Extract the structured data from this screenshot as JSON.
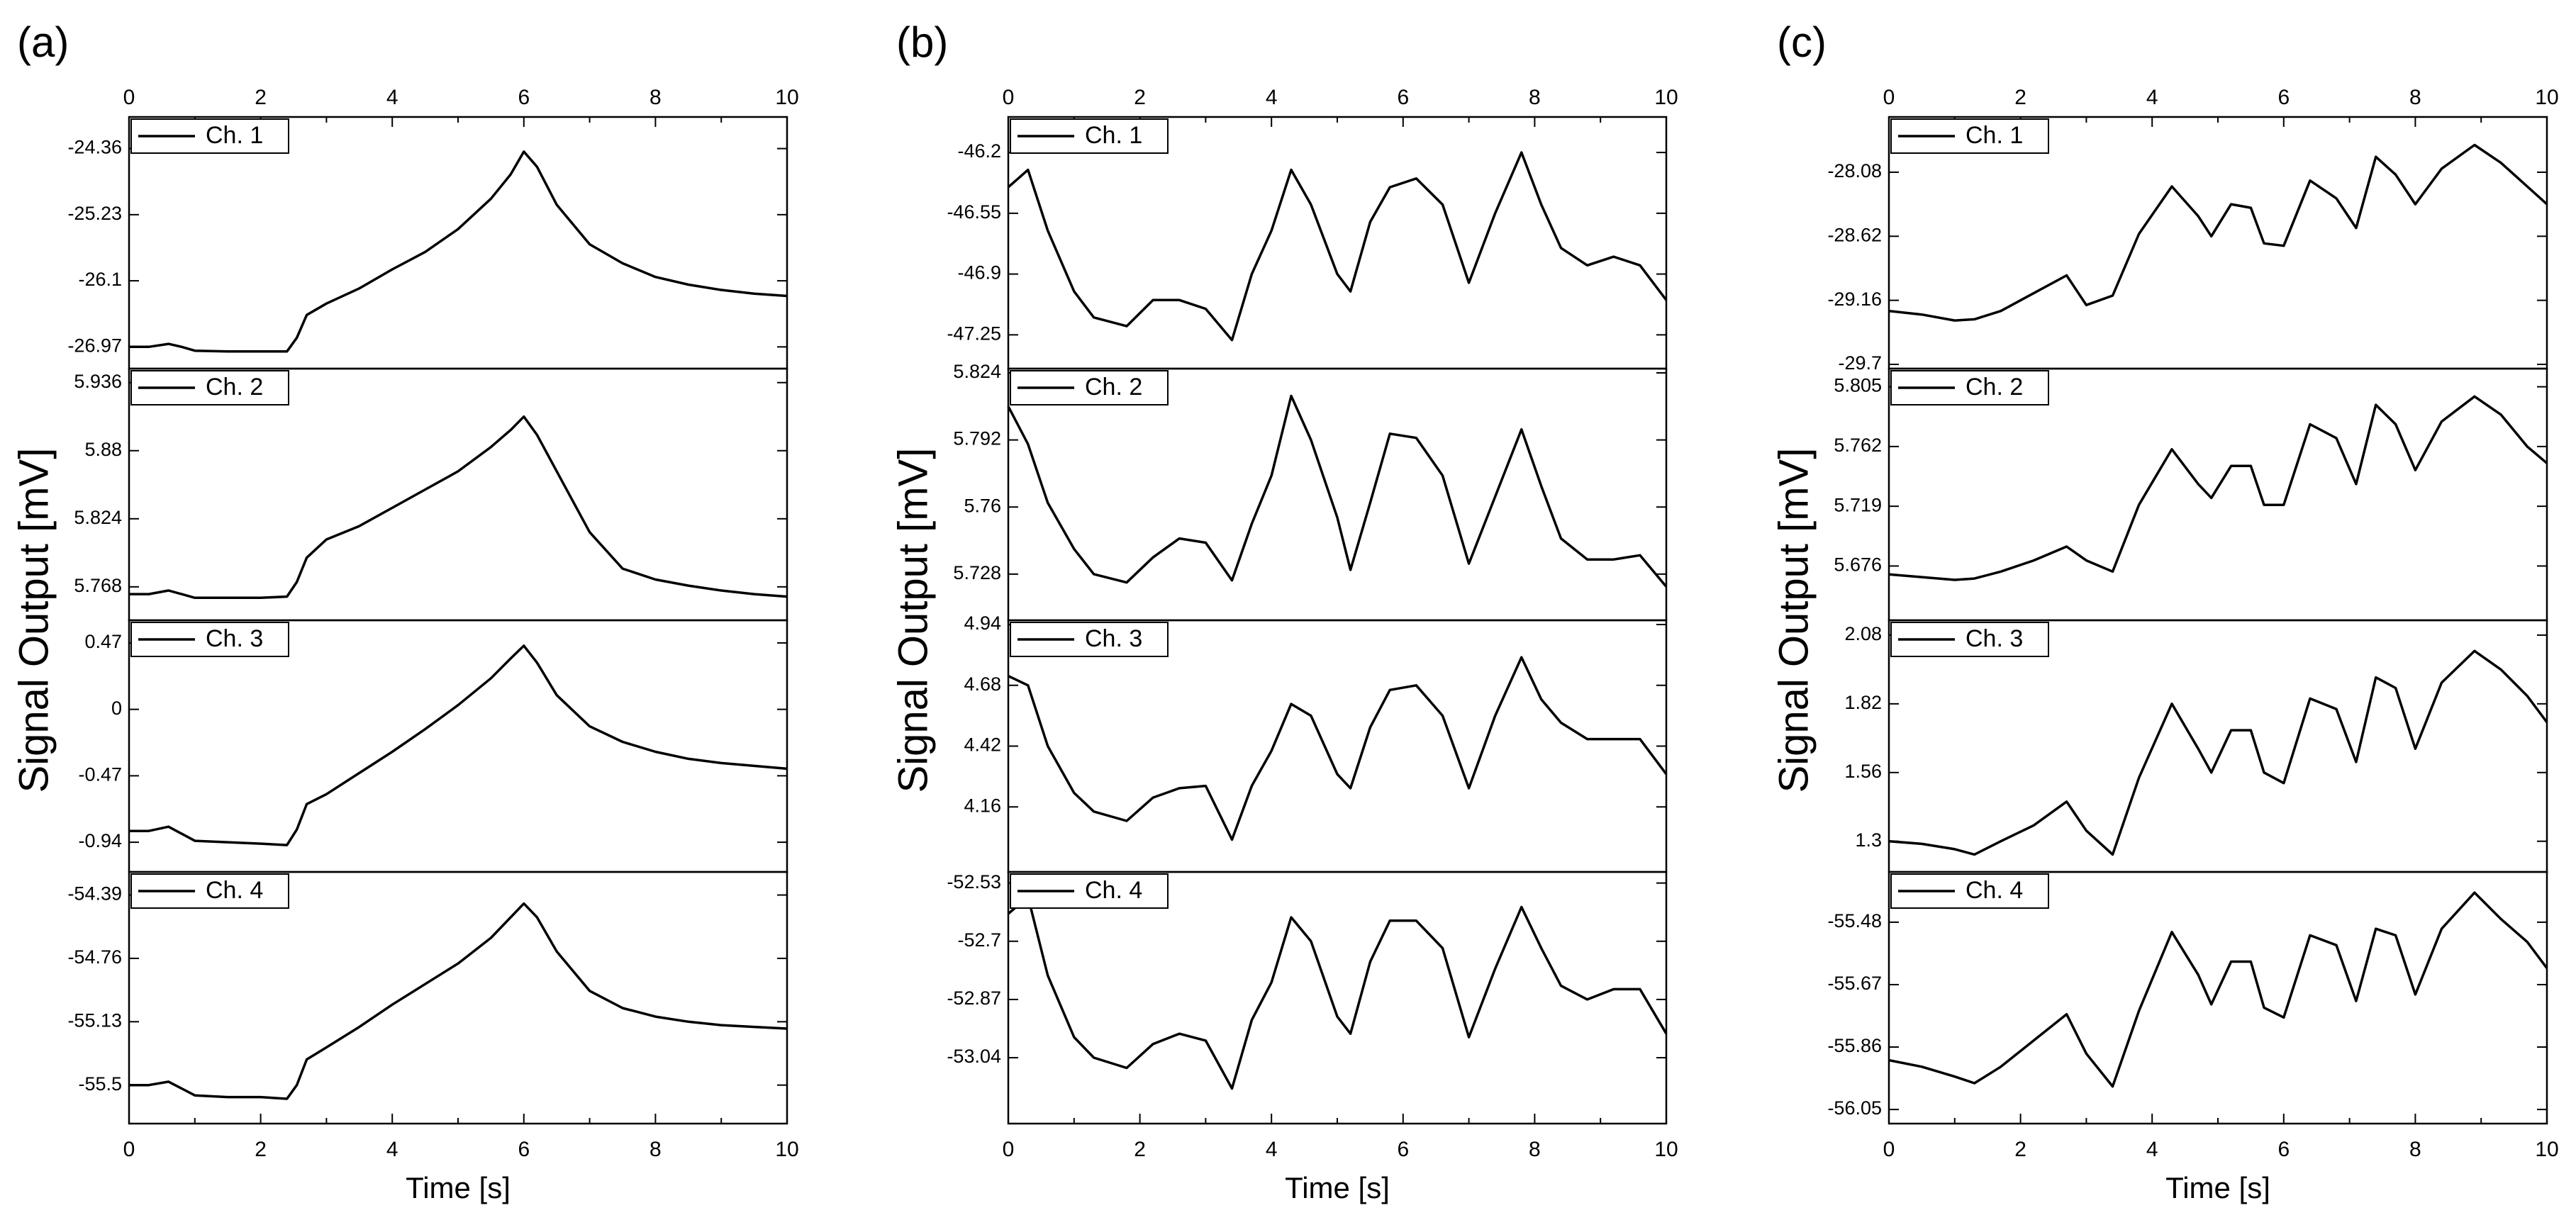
{
  "figure": {
    "ylabel": "Signal Output [mV]",
    "xlabel": "Time [s]",
    "line_color": "#000000"
  },
  "chart_data": [
    {
      "panel_label": "(a)",
      "type": "line",
      "xlabel": "Time [s]",
      "ylabel": "Signal Output [mV]",
      "xlim": [
        0,
        10
      ],
      "x_ticks": [
        "0",
        "2",
        "4",
        "6",
        "8",
        "10"
      ],
      "legend_position": "top-left",
      "subplots": [
        {
          "legend": "Ch. 1",
          "ylim": [
            -27.2,
            -24.0
          ],
          "y_ticks": [
            "-24.36",
            "-25.23",
            "-26.1",
            "-26.97"
          ],
          "series": {
            "name": "Ch. 1",
            "x": [
              0,
              0.3,
              0.6,
              0.8,
              1.0,
              1.5,
              2.0,
              2.4,
              2.55,
              2.7,
              3.0,
              3.5,
              4.0,
              4.5,
              5.0,
              5.5,
              5.8,
              6.0,
              6.2,
              6.5,
              7.0,
              7.5,
              8.0,
              8.5,
              9.0,
              9.5,
              10.0
            ],
            "y": [
              -26.97,
              -26.97,
              -26.93,
              -26.97,
              -27.02,
              -27.03,
              -27.03,
              -27.03,
              -26.85,
              -26.55,
              -26.4,
              -26.2,
              -25.95,
              -25.72,
              -25.42,
              -25.02,
              -24.7,
              -24.4,
              -24.6,
              -25.1,
              -25.62,
              -25.87,
              -26.05,
              -26.15,
              -26.22,
              -26.27,
              -26.3
            ]
          }
        },
        {
          "legend": "Ch. 2",
          "ylim": [
            5.744,
            5.944
          ],
          "y_ticks": [
            "5.936",
            "5.88",
            "5.824",
            "5.768"
          ],
          "series": {
            "name": "Ch. 2",
            "x": [
              0,
              0.3,
              0.6,
              0.8,
              1.0,
              1.5,
              2.0,
              2.4,
              2.55,
              2.7,
              3.0,
              3.5,
              4.0,
              4.5,
              5.0,
              5.5,
              5.8,
              6.0,
              6.2,
              6.5,
              7.0,
              7.5,
              8.0,
              8.5,
              9.0,
              9.5,
              10.0
            ],
            "y": [
              5.762,
              5.762,
              5.765,
              5.762,
              5.759,
              5.759,
              5.759,
              5.76,
              5.772,
              5.792,
              5.807,
              5.818,
              5.833,
              5.848,
              5.863,
              5.883,
              5.897,
              5.908,
              5.893,
              5.863,
              5.813,
              5.783,
              5.774,
              5.769,
              5.765,
              5.762,
              5.76
            ]
          }
        },
        {
          "legend": "Ch. 3",
          "ylim": [
            -1.12,
            0.6
          ],
          "y_ticks": [
            "0.47",
            "0",
            "-0.47",
            "-0.94"
          ],
          "series": {
            "name": "Ch. 3",
            "x": [
              0,
              0.3,
              0.6,
              0.8,
              1.0,
              1.5,
              2.0,
              2.4,
              2.55,
              2.7,
              3.0,
              3.5,
              4.0,
              4.5,
              5.0,
              5.5,
              5.8,
              6.0,
              6.2,
              6.5,
              7.0,
              7.5,
              8.0,
              8.5,
              9.0,
              9.5,
              10.0
            ],
            "y": [
              -0.86,
              -0.86,
              -0.83,
              -0.88,
              -0.93,
              -0.94,
              -0.95,
              -0.96,
              -0.85,
              -0.67,
              -0.6,
              -0.45,
              -0.3,
              -0.14,
              0.03,
              0.22,
              0.36,
              0.45,
              0.33,
              0.1,
              -0.12,
              -0.23,
              -0.3,
              -0.35,
              -0.38,
              -0.4,
              -0.42
            ]
          }
        },
        {
          "legend": "Ch. 4",
          "ylim": [
            -55.7,
            -54.28
          ],
          "y_ticks": [
            "-54.39",
            "-54.76",
            "-55.13",
            "-55.5"
          ],
          "series": {
            "name": "Ch. 4",
            "x": [
              0,
              0.3,
              0.6,
              0.8,
              1.0,
              1.5,
              2.0,
              2.4,
              2.55,
              2.7,
              3.0,
              3.5,
              4.0,
              4.5,
              5.0,
              5.5,
              5.8,
              6.0,
              6.2,
              6.5,
              7.0,
              7.5,
              8.0,
              8.5,
              9.0,
              9.5,
              10.0
            ],
            "y": [
              -55.5,
              -55.5,
              -55.48,
              -55.52,
              -55.56,
              -55.57,
              -55.57,
              -55.58,
              -55.5,
              -55.35,
              -55.28,
              -55.16,
              -55.03,
              -54.91,
              -54.79,
              -54.64,
              -54.52,
              -54.44,
              -54.52,
              -54.72,
              -54.95,
              -55.05,
              -55.1,
              -55.13,
              -55.15,
              -55.16,
              -55.17
            ]
          }
        }
      ]
    },
    {
      "panel_label": "(b)",
      "type": "line",
      "xlabel": "Time [s]",
      "ylabel": "Signal Output [mV]",
      "xlim": [
        0,
        10
      ],
      "x_ticks": [
        "0",
        "2",
        "4",
        "6",
        "8",
        "10"
      ],
      "legend_position": "top-left",
      "subplots": [
        {
          "legend": "Ch. 1",
          "ylim": [
            -47.42,
            -46.02
          ],
          "y_ticks": [
            "-46.2",
            "-46.55",
            "-46.9",
            "-47.25"
          ],
          "series": {
            "name": "Ch. 1",
            "x": [
              0,
              0.3,
              0.6,
              1.0,
              1.3,
              1.8,
              2.2,
              2.6,
              3.0,
              3.4,
              3.7,
              4.0,
              4.3,
              4.6,
              5.0,
              5.2,
              5.5,
              5.8,
              6.2,
              6.6,
              7.0,
              7.4,
              7.8,
              8.1,
              8.4,
              8.8,
              9.2,
              9.6,
              10.0
            ],
            "y": [
              -46.4,
              -46.3,
              -46.65,
              -47.0,
              -47.15,
              -47.2,
              -47.05,
              -47.05,
              -47.1,
              -47.28,
              -46.9,
              -46.65,
              -46.3,
              -46.5,
              -46.9,
              -47.0,
              -46.6,
              -46.4,
              -46.35,
              -46.5,
              -46.95,
              -46.55,
              -46.2,
              -46.5,
              -46.75,
              -46.85,
              -46.8,
              -46.85,
              -47.05
            ]
          }
        },
        {
          "legend": "Ch. 2",
          "ylim": [
            5.708,
            5.824
          ],
          "y_ticks": [
            "5.824",
            "5.792",
            "5.76",
            "5.728"
          ],
          "series": {
            "name": "Ch. 2",
            "x": [
              0,
              0.3,
              0.6,
              1.0,
              1.3,
              1.8,
              2.2,
              2.6,
              3.0,
              3.4,
              3.7,
              4.0,
              4.3,
              4.6,
              5.0,
              5.2,
              5.5,
              5.8,
              6.2,
              6.6,
              7.0,
              7.4,
              7.8,
              8.1,
              8.4,
              8.8,
              9.2,
              9.6,
              10.0
            ],
            "y": [
              5.808,
              5.79,
              5.762,
              5.74,
              5.728,
              5.724,
              5.736,
              5.745,
              5.743,
              5.725,
              5.752,
              5.775,
              5.813,
              5.792,
              5.755,
              5.73,
              5.762,
              5.795,
              5.793,
              5.775,
              5.733,
              5.765,
              5.797,
              5.77,
              5.745,
              5.735,
              5.735,
              5.737,
              5.722
            ]
          }
        },
        {
          "legend": "Ch. 3",
          "ylim": [
            3.9,
            4.94
          ],
          "y_ticks": [
            "4.94",
            "4.68",
            "4.42",
            "4.16"
          ],
          "series": {
            "name": "Ch. 3",
            "x": [
              0,
              0.3,
              0.6,
              1.0,
              1.3,
              1.8,
              2.2,
              2.6,
              3.0,
              3.4,
              3.7,
              4.0,
              4.3,
              4.6,
              5.0,
              5.2,
              5.5,
              5.8,
              6.2,
              6.6,
              7.0,
              7.4,
              7.8,
              8.1,
              8.4,
              8.8,
              9.2,
              9.6,
              10.0
            ],
            "y": [
              4.72,
              4.68,
              4.42,
              4.22,
              4.14,
              4.1,
              4.2,
              4.24,
              4.25,
              4.02,
              4.25,
              4.4,
              4.6,
              4.55,
              4.3,
              4.24,
              4.5,
              4.66,
              4.68,
              4.55,
              4.24,
              4.55,
              4.8,
              4.62,
              4.52,
              4.45,
              4.45,
              4.45,
              4.3
            ]
          }
        },
        {
          "legend": "Ch. 4",
          "ylim": [
            -53.22,
            -52.51
          ],
          "y_ticks": [
            "-52.53",
            "-52.7",
            "-52.87",
            "-53.04"
          ],
          "series": {
            "name": "Ch. 4",
            "x": [
              0,
              0.3,
              0.6,
              1.0,
              1.3,
              1.8,
              2.2,
              2.6,
              3.0,
              3.4,
              3.7,
              4.0,
              4.3,
              4.6,
              5.0,
              5.2,
              5.5,
              5.8,
              6.2,
              6.6,
              7.0,
              7.4,
              7.8,
              8.1,
              8.4,
              8.8,
              9.2,
              9.6,
              10.0
            ],
            "y": [
              -52.62,
              -52.57,
              -52.8,
              -52.98,
              -53.04,
              -53.07,
              -53.0,
              -52.97,
              -52.99,
              -53.13,
              -52.93,
              -52.82,
              -52.63,
              -52.7,
              -52.92,
              -52.97,
              -52.76,
              -52.64,
              -52.64,
              -52.72,
              -52.98,
              -52.78,
              -52.6,
              -52.72,
              -52.83,
              -52.87,
              -52.84,
              -52.84,
              -52.97
            ]
          }
        }
      ]
    },
    {
      "panel_label": "(c)",
      "type": "line",
      "xlabel": "Time [s]",
      "ylabel": "Signal Output [mV]",
      "xlim": [
        0,
        10
      ],
      "x_ticks": [
        "0",
        "2",
        "4",
        "6",
        "8",
        "10"
      ],
      "legend_position": "top-left",
      "subplots": [
        {
          "legend": "Ch. 1",
          "ylim": [
            -29.7,
            -27.65
          ],
          "y_ticks": [
            "-28.08",
            "-28.62",
            "-29.16",
            "-29.7"
          ],
          "series": {
            "name": "Ch. 1",
            "x": [
              0,
              0.5,
              1.0,
              1.3,
              1.7,
              2.2,
              2.7,
              3.0,
              3.4,
              3.8,
              4.3,
              4.7,
              4.9,
              5.2,
              5.5,
              5.7,
              6.0,
              6.4,
              6.8,
              7.1,
              7.4,
              7.7,
              8.0,
              8.4,
              8.9,
              9.3,
              9.7,
              10.0
            ],
            "y": [
              -29.25,
              -29.28,
              -29.33,
              -29.32,
              -29.25,
              -29.1,
              -28.95,
              -29.2,
              -29.12,
              -28.6,
              -28.2,
              -28.45,
              -28.62,
              -28.35,
              -28.38,
              -28.68,
              -28.7,
              -28.15,
              -28.3,
              -28.55,
              -27.95,
              -28.1,
              -28.35,
              -28.05,
              -27.85,
              -28.0,
              -28.2,
              -28.35
            ]
          }
        },
        {
          "legend": "Ch. 2",
          "ylim": [
            5.64,
            5.815
          ],
          "y_ticks": [
            "5.805",
            "5.762",
            "5.719",
            "5.676"
          ],
          "series": {
            "name": "Ch. 2",
            "x": [
              0,
              0.5,
              1.0,
              1.3,
              1.7,
              2.2,
              2.7,
              3.0,
              3.4,
              3.8,
              4.3,
              4.7,
              4.9,
              5.2,
              5.5,
              5.7,
              6.0,
              6.4,
              6.8,
              7.1,
              7.4,
              7.7,
              8.0,
              8.4,
              8.9,
              9.3,
              9.7,
              10.0
            ],
            "y": [
              5.67,
              5.668,
              5.666,
              5.667,
              5.672,
              5.68,
              5.69,
              5.68,
              5.672,
              5.72,
              5.76,
              5.735,
              5.725,
              5.748,
              5.748,
              5.72,
              5.72,
              5.778,
              5.768,
              5.735,
              5.792,
              5.778,
              5.745,
              5.78,
              5.798,
              5.785,
              5.762,
              5.75
            ]
          }
        },
        {
          "legend": "Ch. 3",
          "ylim": [
            1.2,
            2.12
          ],
          "y_ticks": [
            "2.08",
            "1.82",
            "1.56",
            "1.3"
          ],
          "series": {
            "name": "Ch. 3",
            "x": [
              0,
              0.5,
              1.0,
              1.3,
              1.7,
              2.2,
              2.7,
              3.0,
              3.4,
              3.8,
              4.3,
              4.7,
              4.9,
              5.2,
              5.5,
              5.7,
              6.0,
              6.4,
              6.8,
              7.1,
              7.4,
              7.7,
              8.0,
              8.4,
              8.9,
              9.3,
              9.7,
              10.0
            ],
            "y": [
              1.3,
              1.29,
              1.27,
              1.25,
              1.3,
              1.36,
              1.45,
              1.34,
              1.25,
              1.54,
              1.82,
              1.65,
              1.56,
              1.72,
              1.72,
              1.56,
              1.52,
              1.84,
              1.8,
              1.6,
              1.92,
              1.88,
              1.65,
              1.9,
              2.02,
              1.95,
              1.85,
              1.75
            ]
          }
        },
        {
          "legend": "Ch. 4",
          "ylim": [
            -56.08,
            -55.34
          ],
          "y_ticks": [
            "-55.48",
            "-55.67",
            "-55.86",
            "-56.05"
          ],
          "series": {
            "name": "Ch. 4",
            "x": [
              0,
              0.5,
              1.0,
              1.3,
              1.7,
              2.2,
              2.7,
              3.0,
              3.4,
              3.8,
              4.3,
              4.7,
              4.9,
              5.2,
              5.5,
              5.7,
              6.0,
              6.4,
              6.8,
              7.1,
              7.4,
              7.7,
              8.0,
              8.4,
              8.9,
              9.3,
              9.7,
              10.0
            ],
            "y": [
              -55.9,
              -55.92,
              -55.95,
              -55.97,
              -55.92,
              -55.84,
              -55.76,
              -55.88,
              -55.98,
              -55.75,
              -55.51,
              -55.64,
              -55.73,
              -55.6,
              -55.6,
              -55.74,
              -55.77,
              -55.52,
              -55.55,
              -55.72,
              -55.5,
              -55.52,
              -55.7,
              -55.5,
              -55.39,
              -55.47,
              -55.54,
              -55.62
            ]
          }
        }
      ]
    }
  ]
}
